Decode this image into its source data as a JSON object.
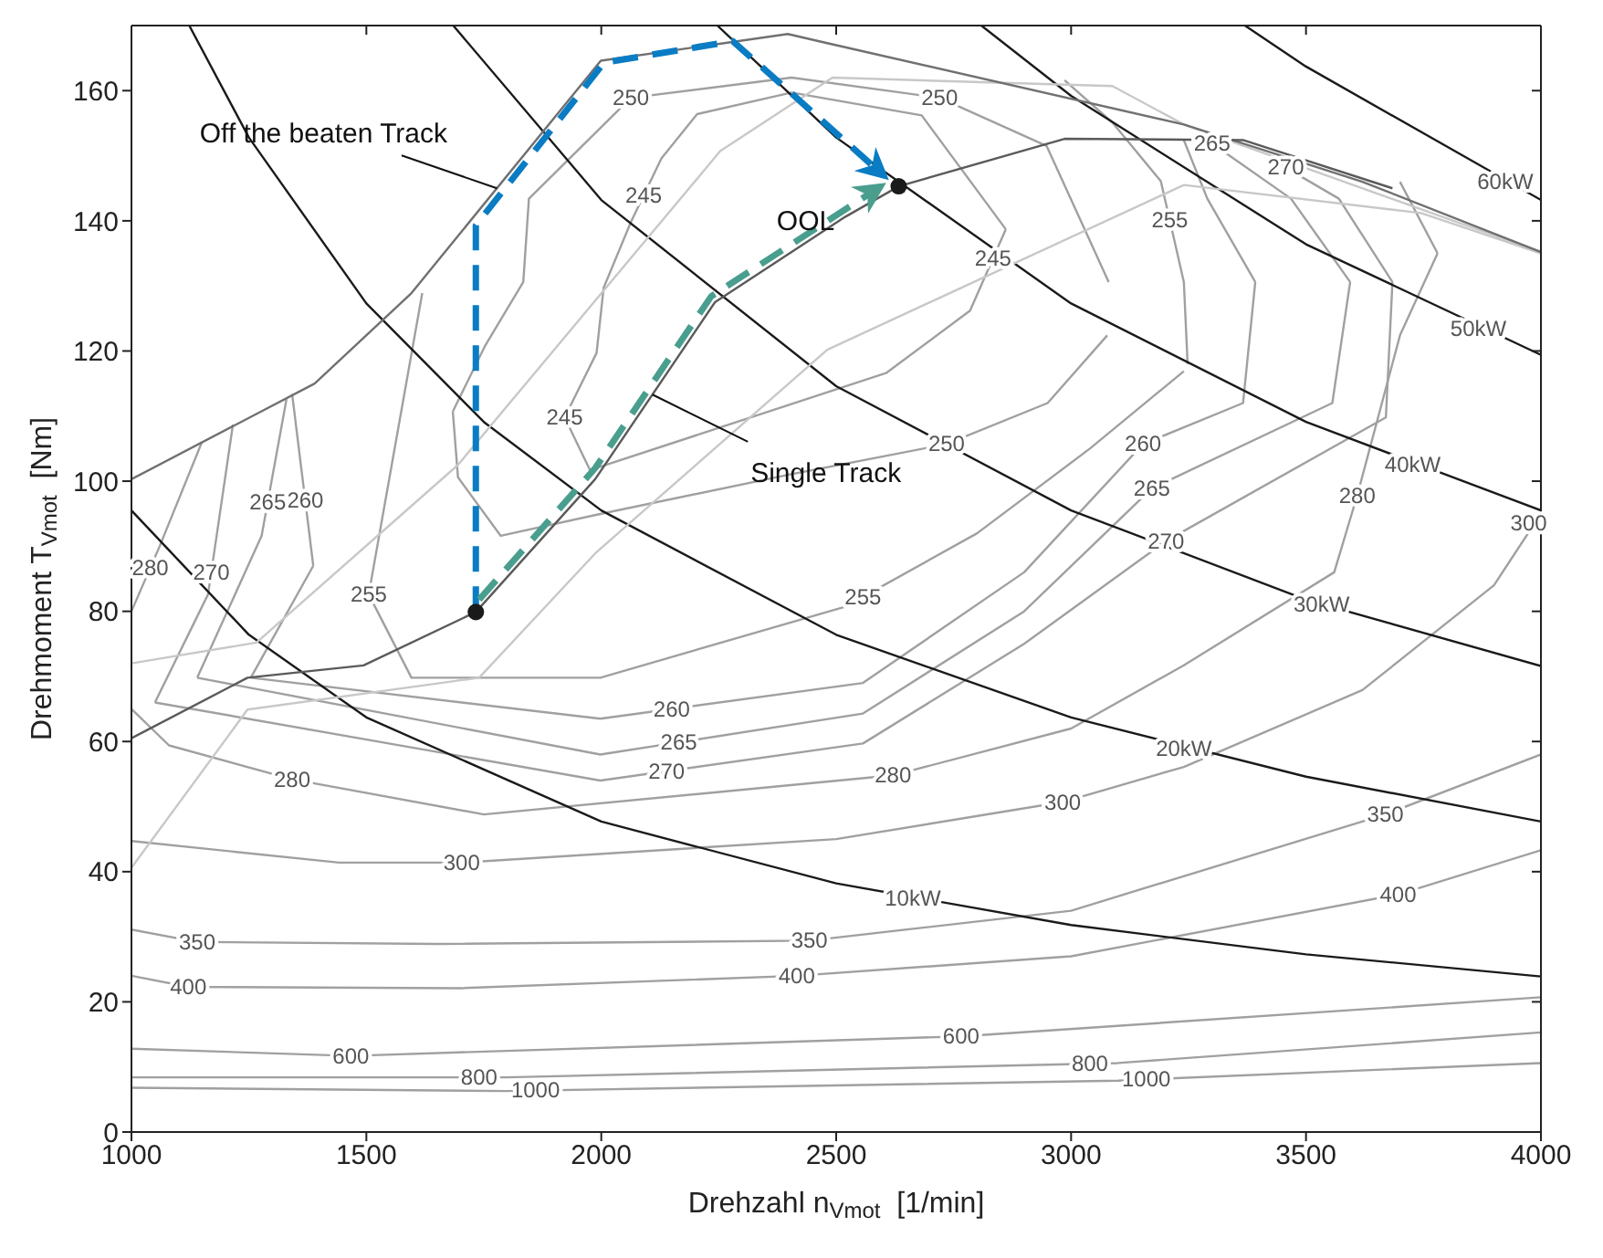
{
  "chart_data": {
    "type": "line",
    "xlabel": "Drehzahl n$_{Vmot}$  [1/min]",
    "ylabel": "Drehmoment T$_{Vmot}$  [Nm]",
    "xlim": [
      1000,
      4000
    ],
    "xticks": [
      1000,
      1500,
      2000,
      2500,
      3000,
      3500,
      4000
    ],
    "ylim": [
      0,
      170
    ],
    "yticks": [
      0,
      20,
      40,
      60,
      80,
      100,
      120,
      140,
      160
    ],
    "marker": "none",
    "series": [
      {
        "color": "#a0a0a0",
        "x": [
          1922,
          1976,
          2606,
          2785,
          2861
        ],
        "values": [
          109.8,
          101.7,
          116.6,
          126.2,
          138.7
        ]
      },
      {
        "color": "#a0a0a0",
        "x": [
          1922,
          1990,
          2005,
          2063,
          2128,
          2204,
          2405,
          2682,
          2861
        ],
        "values": [
          109.8,
          119.7,
          129.7,
          139.8,
          149.6,
          156.4,
          159.7,
          156.2,
          138.7
        ]
      },
      {
        "color": "#a0a0a0",
        "x": [
          1684,
          1695,
          1786,
          2000,
          2400,
          2735,
          2950,
          3077
        ],
        "values": [
          110.7,
          100.6,
          91.6,
          95,
          101,
          105.7,
          112,
          122.4
        ]
      },
      {
        "color": "#a0a0a0",
        "x": [
          1684,
          1752,
          1834,
          1846,
          2063,
          2405,
          2720,
          2948,
          3080
        ],
        "values": [
          110.7,
          120.7,
          130.6,
          143.4,
          158.9,
          162,
          158.9,
          151.5,
          130.6
        ]
      },
      {
        "color": "#a0a0a0",
        "x": [
          1505,
          1619
        ],
        "values": [
          82.6,
          128.9
        ]
      },
      {
        "color": "#a0a0a0",
        "x": [
          1505,
          1596,
          1998,
          2519,
          2800,
          3040,
          3240
        ],
        "values": [
          82.6,
          69.8,
          69.8,
          80.7,
          92,
          105,
          116.9
        ]
      },
      {
        "color": "#a0a0a0",
        "x": [
          2986,
          3088,
          3191,
          3240,
          3248
        ],
        "values": [
          161.6,
          155.1,
          146.1,
          130.6,
          118
        ]
      },
      {
        "color": "#a0a0a0",
        "x": [
          1342,
          1387
        ],
        "values": [
          113.4,
          87
        ]
      },
      {
        "color": "#a0a0a0",
        "x": [
          1254,
          1387
        ],
        "values": [
          69.8,
          87
        ]
      },
      {
        "color": "#a0a0a0",
        "x": [
          1254,
          1998,
          2557,
          2900,
          3153,
          3366,
          3392
        ],
        "values": [
          69.8,
          63.5,
          69,
          86,
          105.7,
          112,
          130.6
        ]
      },
      {
        "color": "#a0a0a0",
        "x": [
          3240,
          3290,
          3392
        ],
        "values": [
          152.4,
          143.4,
          130.6
        ]
      },
      {
        "color": "#a0a0a0",
        "x": [
          1140,
          1277,
          1330
        ],
        "values": [
          69.8,
          91.6,
          112.6
        ]
      },
      {
        "color": "#a0a0a0",
        "x": [
          1140,
          1998,
          2557,
          2900,
          3172,
          3556,
          3594
        ],
        "values": [
          69.8,
          58,
          64.3,
          80,
          98.9,
          112,
          130.6
        ]
      },
      {
        "color": "#a0a0a0",
        "x": [
          3290,
          3468,
          3594
        ],
        "values": [
          152.4,
          143.4,
          130.6
        ]
      },
      {
        "color": "#a0a0a0",
        "x": [
          1050,
          1163,
          1216
        ],
        "values": [
          66,
          82.6,
          108.7
        ]
      },
      {
        "color": "#a0a0a0",
        "x": [
          1050,
          1998,
          2557,
          2900,
          3202,
          3670,
          3684
        ],
        "values": [
          66,
          54,
          59.7,
          75,
          90.8,
          109.8,
          130.6
        ]
      },
      {
        "color": "#a0a0a0",
        "x": [
          3442,
          3570,
          3684
        ],
        "values": [
          148.8,
          143.4,
          130.6
        ]
      },
      {
        "color": "#a0a0a0",
        "x": [
          1000,
          1060,
          1150
        ],
        "values": [
          80,
          90,
          106
        ]
      },
      {
        "color": "#a0a0a0",
        "x": [
          1000,
          1080,
          1342,
          1750,
          2621,
          3000,
          3240,
          3560,
          3609,
          3700,
          3780
        ],
        "values": [
          65,
          59.4,
          54.2,
          48.8,
          54.8,
          62,
          71.7,
          86,
          97.8,
          122.4,
          135
        ]
      },
      {
        "color": "#a0a0a0",
        "x": [
          3700,
          3780
        ],
        "values": [
          146,
          135
        ]
      },
      {
        "color": "#a0a0a0",
        "x": [
          1000,
          1442,
          1703,
          2500,
          2982,
          3240,
          3620,
          3900,
          4000
        ],
        "values": [
          44.7,
          41.4,
          41.4,
          45,
          50.7,
          56.1,
          67.9,
          84,
          95
        ]
      },
      {
        "color": "#a0a0a0",
        "x": [
          1000,
          1140,
          1650,
          2443,
          3000,
          3669,
          4000
        ],
        "values": [
          31.1,
          29.2,
          28.9,
          29.4,
          34,
          48.8,
          58
        ]
      },
      {
        "color": "#a0a0a0",
        "x": [
          1000,
          1121,
          1700,
          2416,
          3000,
          3696,
          4000
        ],
        "values": [
          24,
          22.3,
          22.1,
          24,
          27,
          36.5,
          43.3
        ]
      },
      {
        "color": "#a0a0a0",
        "x": [
          1000,
          1467,
          2766,
          4000
        ],
        "values": [
          12.8,
          11.7,
          14.7,
          20.7
        ]
      },
      {
        "color": "#a0a0a0",
        "x": [
          1000,
          1797,
          3100,
          4000
        ],
        "values": [
          8.4,
          8.4,
          10.6,
          15.3
        ]
      },
      {
        "color": "#a0a0a0",
        "x": [
          1000,
          1797,
          3100,
          4000
        ],
        "values": [
          6.8,
          6.3,
          7.9,
          10.6
        ]
      },
      {
        "color": "#1a1a1a",
        "x": [
          1000,
          1250,
          1500,
          2000,
          2500,
          3000,
          3500,
          4000
        ],
        "values": [
          95.5,
          76.4,
          63.7,
          47.7,
          38.2,
          31.8,
          27.3,
          23.9
        ]
      },
      {
        "color": "#1a1a1a",
        "x": [
          1123,
          1250,
          1500,
          1750,
          2000,
          2500,
          3000,
          3500,
          4000
        ],
        "values": [
          170,
          152.8,
          127.3,
          109.1,
          95.5,
          76.4,
          63.7,
          54.6,
          47.7
        ]
      },
      {
        "color": "#1a1a1a",
        "x": [
          1685,
          2000,
          2500,
          3000,
          3500,
          4000
        ],
        "values": [
          170,
          143.2,
          114.6,
          95.5,
          81.8,
          71.6
        ]
      },
      {
        "color": "#1a1a1a",
        "x": [
          2247,
          2500,
          3000,
          3500,
          4000
        ],
        "values": [
          170,
          152.8,
          127.3,
          109.1,
          95.5
        ]
      },
      {
        "color": "#1a1a1a",
        "x": [
          2809,
          3000,
          3500,
          4000
        ],
        "values": [
          170,
          159.2,
          136.4,
          119.4
        ]
      },
      {
        "color": "#1a1a1a",
        "x": [
          3370,
          3500,
          4000
        ],
        "values": [
          170,
          163.7,
          143.2
        ]
      },
      {
        "color": "#c8c8c8",
        "x": [
          1000,
          1266,
          1695,
          2253,
          2492,
          3088,
          3240,
          4000
        ],
        "values": [
          72,
          75.2,
          102.5,
          150.7,
          162,
          160.7,
          154.8,
          135.2
        ]
      },
      {
        "color": "#c8c8c8",
        "x": [
          1000,
          1247,
          1740,
          1987,
          2481,
          3240,
          3745,
          4000
        ],
        "values": [
          40.6,
          64.9,
          69.8,
          88.9,
          120.2,
          145.5,
          141.2,
          135
        ]
      },
      {
        "color": "#707070",
        "x": [
          1000,
          1390,
          1596,
          1999,
          2397,
          2481,
          3240,
          3620,
          4000
        ],
        "values": [
          100.3,
          115,
          128.9,
          164.6,
          168.7,
          167.3,
          154.8,
          146,
          135.2
        ]
      },
      {
        "color": "#5a5a5a",
        "x": [
          1000,
          1247,
          1494,
          1733,
          1987,
          2242,
          2519,
          2633,
          2986,
          3366,
          3684
        ],
        "values": [
          60.5,
          69.8,
          71.7,
          79.9,
          100.3,
          127.5,
          140.6,
          145.3,
          152.6,
          152.4,
          145
        ]
      },
      {
        "color": "#0a7cc4",
        "line_style": "dashed",
        "x": [
          1733,
          1733,
          2006,
          2280,
          2602
        ],
        "values": [
          79.9,
          139.3,
          164.3,
          167.6,
          146.9
        ]
      },
      {
        "color": "#4a9e8e",
        "line_style": "dashed",
        "x": [
          1740,
          1987,
          2234,
          2595
        ],
        "values": [
          81.8,
          102,
          128.4,
          145.3
        ]
      },
      {
        "type": "scatter",
        "marker": "circle",
        "color": "#1a1a1a",
        "x": [
          1733,
          2633
        ],
        "values": [
          79.9,
          145.3
        ]
      }
    ],
    "annotations": [
      {
        "text": "Off the beaten Track",
        "x": 1778,
        "y": 145
      },
      {
        "text": "Single Track",
        "x": 2109,
        "y": 113.3
      },
      {
        "text": "OOL",
        "x": 2435,
        "y": 136.6
      },
      {
        "text": "60kW",
        "x": 3924,
        "y": 146
      },
      {
        "text": "50kW",
        "x": 3867,
        "y": 123.5
      },
      {
        "text": "40kW",
        "x": 3727,
        "y": 102.5
      },
      {
        "text": "30kW",
        "x": 3533,
        "y": 81.1
      },
      {
        "text": "20kW",
        "x": 3240,
        "y": 58.9
      },
      {
        "text": "10kW",
        "x": 2663,
        "y": 35.9
      },
      {
        "text": "245",
        "x": 2090,
        "y": 143.9
      },
      {
        "text": "245",
        "x": 1922,
        "y": 109.8
      },
      {
        "text": "245",
        "x": 2834,
        "y": 134.3
      },
      {
        "text": "250",
        "x": 2063,
        "y": 158.9
      },
      {
        "text": "250",
        "x": 2720,
        "y": 158.9
      },
      {
        "text": "250",
        "x": 2735,
        "y": 105.7
      },
      {
        "text": "255",
        "x": 1505,
        "y": 82.6
      },
      {
        "text": "255",
        "x": 2557,
        "y": 82.2
      },
      {
        "text": "255",
        "x": 3210,
        "y": 140.1
      },
      {
        "text": "260",
        "x": 1370,
        "y": 97
      },
      {
        "text": "260",
        "x": 2150,
        "y": 65
      },
      {
        "text": "260",
        "x": 3153,
        "y": 105.7
      },
      {
        "text": "265",
        "x": 1290,
        "y": 96.8
      },
      {
        "text": "265",
        "x": 2165,
        "y": 59.9
      },
      {
        "text": "265",
        "x": 3172,
        "y": 98.9
      },
      {
        "text": "265",
        "x": 3300,
        "y": 151.9
      },
      {
        "text": "270",
        "x": 1170,
        "y": 86
      },
      {
        "text": "270",
        "x": 2139,
        "y": 55.4
      },
      {
        "text": "270",
        "x": 3202,
        "y": 90.8
      },
      {
        "text": "270",
        "x": 3457,
        "y": 148.2
      },
      {
        "text": "280",
        "x": 1040,
        "y": 86.7
      },
      {
        "text": "280",
        "x": 1342,
        "y": 54.2
      },
      {
        "text": "280",
        "x": 2621,
        "y": 54.8
      },
      {
        "text": "280",
        "x": 3609,
        "y": 97.8
      },
      {
        "text": "300",
        "x": 1703,
        "y": 41.4
      },
      {
        "text": "300",
        "x": 2982,
        "y": 50.7
      },
      {
        "text": "300",
        "x": 3974,
        "y": 93.5
      },
      {
        "text": "350",
        "x": 1140,
        "y": 29.2
      },
      {
        "text": "350",
        "x": 2443,
        "y": 29.4
      },
      {
        "text": "350",
        "x": 3669,
        "y": 48.8
      },
      {
        "text": "400",
        "x": 1121,
        "y": 22.3
      },
      {
        "text": "400",
        "x": 2416,
        "y": 24
      },
      {
        "text": "400",
        "x": 3696,
        "y": 36.5
      },
      {
        "text": "600",
        "x": 1467,
        "y": 11.7
      },
      {
        "text": "600",
        "x": 2766,
        "y": 14.7
      },
      {
        "text": "800",
        "x": 1740,
        "y": 8.4
      },
      {
        "text": "800",
        "x": 3040,
        "y": 10.5
      },
      {
        "text": "1000",
        "x": 1860,
        "y": 6.4
      },
      {
        "text": "1000",
        "x": 3160,
        "y": 8.1
      }
    ]
  }
}
